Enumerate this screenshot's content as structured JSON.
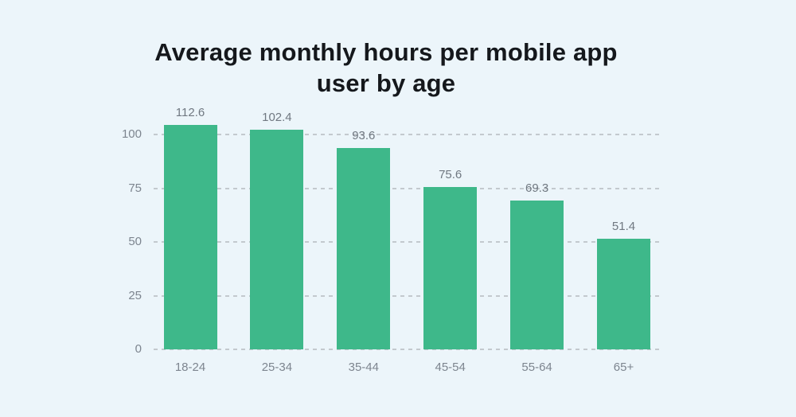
{
  "page": {
    "background_color": "#ecf5fa"
  },
  "chart_data": {
    "type": "bar",
    "title": "Average monthly hours per mobile app user by age",
    "title_lines": [
      "Average monthly hours per mobile app",
      "user by age"
    ],
    "categories": [
      "18-24",
      "25-34",
      "35-44",
      "45-54",
      "55-64",
      "65+"
    ],
    "values": [
      112.6,
      102.4,
      93.6,
      75.6,
      69.3,
      51.4
    ],
    "value_labels": [
      "112.6",
      "102.4",
      "93.6",
      "75.6",
      "69.3",
      "51.4"
    ],
    "xlabel": "",
    "ylabel": "",
    "y_ticks": [
      0,
      25,
      50,
      75,
      100
    ],
    "y_tick_labels": [
      "0",
      "25",
      "50",
      "75",
      "100"
    ],
    "ylim": [
      0,
      104
    ],
    "grid": "horizontal-dashed",
    "legend_position": "none",
    "bar_color": "#3eb88a",
    "title_color": "#15181c",
    "axis_label_color": "#7d858f",
    "value_label_color": "#707881",
    "gridline_color": "#c3c9ce",
    "note": "first bar (112.6) is clipped at the top of the plot area"
  }
}
